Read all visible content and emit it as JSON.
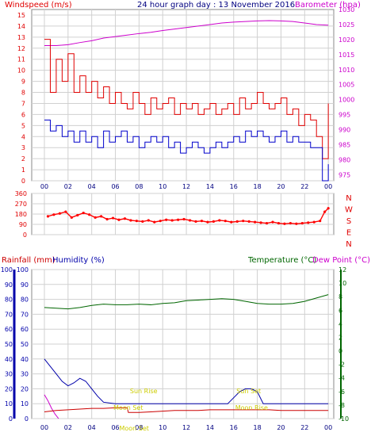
{
  "colors": {
    "wind": "#e00000",
    "gust_low": "#0000cc",
    "baro": "#cc00cc",
    "dir": "#ff0000",
    "rain": "#cc0000",
    "humidity": "#0000aa",
    "temp": "#006600",
    "dew": "#cc00cc",
    "annot": "#cccc00",
    "grid": "#d0d0d0"
  },
  "chart_data": [
    {
      "type": "line",
      "title": "24 hour graph day : 13 November 2016",
      "y_left_label": "Windspeed (m/s)",
      "y_right_label": "Barometer (hpa)",
      "x_ticks": [
        "00",
        "02",
        "04",
        "06",
        "08",
        "10",
        "12",
        "14",
        "16",
        "18",
        "20",
        "22",
        "00"
      ],
      "y_left_ticks": [
        "15",
        "14",
        "13",
        "12",
        "11",
        "10",
        "9",
        "8",
        "7",
        "6",
        "5",
        "4",
        "3",
        "2",
        "1",
        "0"
      ],
      "y_right_ticks": [
        "1030",
        "1025",
        "1020",
        "1015",
        "1010",
        "1005",
        "1000",
        "995",
        "990",
        "985",
        "980",
        "975"
      ],
      "ylim_left": [
        0,
        15.5
      ],
      "ylim_right": [
        973,
        1030
      ],
      "grid": true,
      "series": [
        {
          "name": "Windspeed (m/s)",
          "axis": "left",
          "x": [
            0,
            0.5,
            1,
            1.5,
            2,
            2.5,
            3,
            3.5,
            4,
            4.5,
            5,
            5.5,
            6,
            6.5,
            7,
            7.5,
            8,
            8.5,
            9,
            9.5,
            10,
            10.5,
            11,
            11.5,
            12,
            12.5,
            13,
            13.5,
            14,
            14.5,
            15,
            15.5,
            16,
            16.5,
            17,
            17.5,
            18,
            18.5,
            19,
            19.5,
            20,
            20.5,
            21,
            21.5,
            22,
            22.5,
            23,
            23.5,
            24
          ],
          "values": [
            12.8,
            8,
            11,
            9,
            11.5,
            8,
            9.5,
            8,
            9,
            7.5,
            8.5,
            7,
            8,
            7,
            6.5,
            8,
            7,
            6,
            7.5,
            6.5,
            7,
            7.5,
            6,
            7,
            6.5,
            7,
            6,
            6.5,
            7,
            6,
            6.5,
            7,
            6,
            7.5,
            6.5,
            7,
            8,
            7,
            6.5,
            7,
            7.5,
            6,
            6.5,
            5,
            6,
            5.5,
            4,
            2,
            7
          ]
        },
        {
          "name": "Wind (low)",
          "axis": "left",
          "x": [
            0,
            0.5,
            1,
            1.5,
            2,
            2.5,
            3,
            3.5,
            4,
            4.5,
            5,
            5.5,
            6,
            6.5,
            7,
            7.5,
            8,
            8.5,
            9,
            9.5,
            10,
            10.5,
            11,
            11.5,
            12,
            12.5,
            13,
            13.5,
            14,
            14.5,
            15,
            15.5,
            16,
            16.5,
            17,
            17.5,
            18,
            18.5,
            19,
            19.5,
            20,
            20.5,
            21,
            21.5,
            22,
            22.5,
            23,
            23.5,
            24
          ],
          "values": [
            5.5,
            4.5,
            5,
            4,
            4.5,
            3.5,
            4.5,
            3.5,
            4,
            3,
            4.5,
            3.5,
            4,
            4.5,
            3.5,
            4,
            3,
            3.5,
            4,
            3.5,
            4,
            3,
            3.5,
            2.5,
            3,
            3.5,
            3,
            2.5,
            3,
            3.5,
            3,
            3.5,
            4,
            3.5,
            4.5,
            4,
            4.5,
            4,
            3.5,
            4,
            4.5,
            3.5,
            4,
            3.5,
            3.5,
            3,
            3,
            0,
            1.5
          ]
        },
        {
          "name": "Barometer (hpa)",
          "axis": "right",
          "x": [
            0,
            1,
            2,
            3,
            4,
            5,
            6,
            7,
            8,
            9,
            10,
            11,
            12,
            13,
            14,
            15,
            16,
            17,
            18,
            19,
            20,
            21,
            22,
            23,
            24
          ],
          "values": [
            1018,
            1018,
            1018.3,
            1019,
            1019.6,
            1020.5,
            1021,
            1021.5,
            1022,
            1022.4,
            1023,
            1023.5,
            1024,
            1024.5,
            1025,
            1025.5,
            1025.8,
            1026,
            1026.2,
            1026.3,
            1026.2,
            1026,
            1025.5,
            1025,
            1024.8
          ]
        }
      ]
    },
    {
      "type": "scatter",
      "y_left_ticks": [
        "360",
        "270",
        "180",
        "90",
        "0"
      ],
      "y_right_labels": [
        "N",
        "W",
        "S",
        "E",
        "N"
      ],
      "ylim": [
        0,
        360
      ],
      "series": [
        {
          "name": "Wind direction",
          "x": [
            0.3,
            0.8,
            1.3,
            1.8,
            2.3,
            2.8,
            3.3,
            3.8,
            4.3,
            4.8,
            5.3,
            5.8,
            6.3,
            6.8,
            7.3,
            7.8,
            8.3,
            8.8,
            9.3,
            9.8,
            10.3,
            10.8,
            11.3,
            11.8,
            12.3,
            12.8,
            13.3,
            13.8,
            14.3,
            14.8,
            15.3,
            15.8,
            16.3,
            16.8,
            17.3,
            17.8,
            18.3,
            18.8,
            19.3,
            19.8,
            20.3,
            20.8,
            21.3,
            21.8,
            22.3,
            22.8,
            23.3,
            23.7,
            24
          ],
          "values": [
            160,
            175,
            185,
            200,
            150,
            170,
            190,
            175,
            150,
            160,
            135,
            145,
            130,
            140,
            125,
            120,
            115,
            125,
            110,
            120,
            130,
            125,
            130,
            135,
            125,
            115,
            120,
            110,
            115,
            125,
            120,
            110,
            115,
            120,
            115,
            110,
            105,
            100,
            110,
            100,
            95,
            100,
            95,
            100,
            105,
            110,
            120,
            200,
            230
          ]
        }
      ]
    },
    {
      "type": "line",
      "y_left_label_1": "Rainfall (mm)",
      "y_left_label_2": "Humidity (%)",
      "y_right_label_1": "Temperature (°C)",
      "y_right_label_2": "Dew Point (°C)",
      "y_rain_ticks": [
        "100",
        "90",
        "80",
        "70",
        "60",
        "50",
        "40",
        "30",
        "20",
        "10",
        "0"
      ],
      "y_hum_ticks": [
        "100",
        "90",
        "80",
        "70",
        "60",
        "50",
        "40",
        "30",
        "20",
        "10",
        "0"
      ],
      "y_temp_ticks": [
        "12",
        "10",
        "8",
        "6",
        "4",
        "2",
        "0",
        "-2",
        "-4",
        "-6",
        "-8",
        "-10"
      ],
      "ylim_left": [
        0,
        100
      ],
      "ylim_right": [
        -10,
        12
      ],
      "x_ticks": [
        "00",
        "02",
        "04",
        "06",
        "08",
        "10",
        "12",
        "14",
        "16",
        "18",
        "20",
        "22",
        "00"
      ],
      "annotations": [
        {
          "text": "Sun Rise",
          "x": 7.5
        },
        {
          "text": "Sun Set",
          "x": 16.5
        },
        {
          "text": "Moon Set",
          "x": 6.1
        },
        {
          "text": "Moon Rise",
          "x": 16.4
        },
        {
          "text": "Moon Set",
          "x": 6.6
        }
      ],
      "series": [
        {
          "name": "Temperature (°C)",
          "axis": "right",
          "x": [
            0,
            1,
            2,
            3,
            4,
            5,
            6,
            7,
            8,
            9,
            10,
            11,
            12,
            13,
            14,
            15,
            16,
            17,
            18,
            19,
            20,
            21,
            22,
            23,
            24
          ],
          "values": [
            6.4,
            6.3,
            6.2,
            6.4,
            6.7,
            6.9,
            6.8,
            6.8,
            6.9,
            6.8,
            7.0,
            7.1,
            7.4,
            7.5,
            7.6,
            7.7,
            7.6,
            7.3,
            7.0,
            6.9,
            6.9,
            7.0,
            7.3,
            7.8,
            8.3
          ]
        },
        {
          "name": "Humidity (%)",
          "axis": "left",
          "x": [
            0,
            0.5,
            1,
            1.5,
            2,
            2.5,
            3,
            3.5,
            4,
            4.5,
            5,
            6,
            7,
            8,
            9,
            10,
            11,
            12,
            13,
            14,
            15,
            15.5,
            16,
            16.5,
            17,
            17.5,
            18,
            18.5,
            19,
            20,
            21,
            22,
            23,
            24
          ],
          "values": [
            40,
            35,
            30,
            25,
            22,
            24,
            27,
            25,
            20,
            15,
            11,
            10,
            10,
            10,
            10,
            10,
            10,
            10,
            10,
            10,
            10,
            10,
            14,
            18,
            20,
            20,
            18,
            10,
            10,
            10,
            10,
            10,
            10,
            10
          ]
        },
        {
          "name": "Rainfall (mm)",
          "axis": "left",
          "x": [
            0,
            0.3,
            0.6,
            0.9,
            1.2
          ],
          "values": [
            16,
            12,
            7,
            3,
            0
          ]
        },
        {
          "name": "Dew Point (°C)",
          "axis": "right",
          "x": [
            0,
            1,
            2,
            3,
            4,
            5,
            6,
            7,
            7.1,
            8,
            9,
            10,
            11,
            12,
            13,
            14,
            15,
            16,
            17,
            18,
            19,
            20,
            21,
            22,
            23,
            24
          ],
          "values": [
            -9,
            -8.8,
            -8.7,
            -8.6,
            -8.5,
            -8.5,
            -8.4,
            -8.4,
            -9.1,
            -9.1,
            -9.0,
            -8.9,
            -8.8,
            -8.8,
            -8.8,
            -8.7,
            -8.7,
            -8.7,
            -8.7,
            -8.7,
            -8.7,
            -8.8,
            -8.8,
            -8.8,
            -8.8,
            -8.8
          ]
        }
      ]
    }
  ]
}
